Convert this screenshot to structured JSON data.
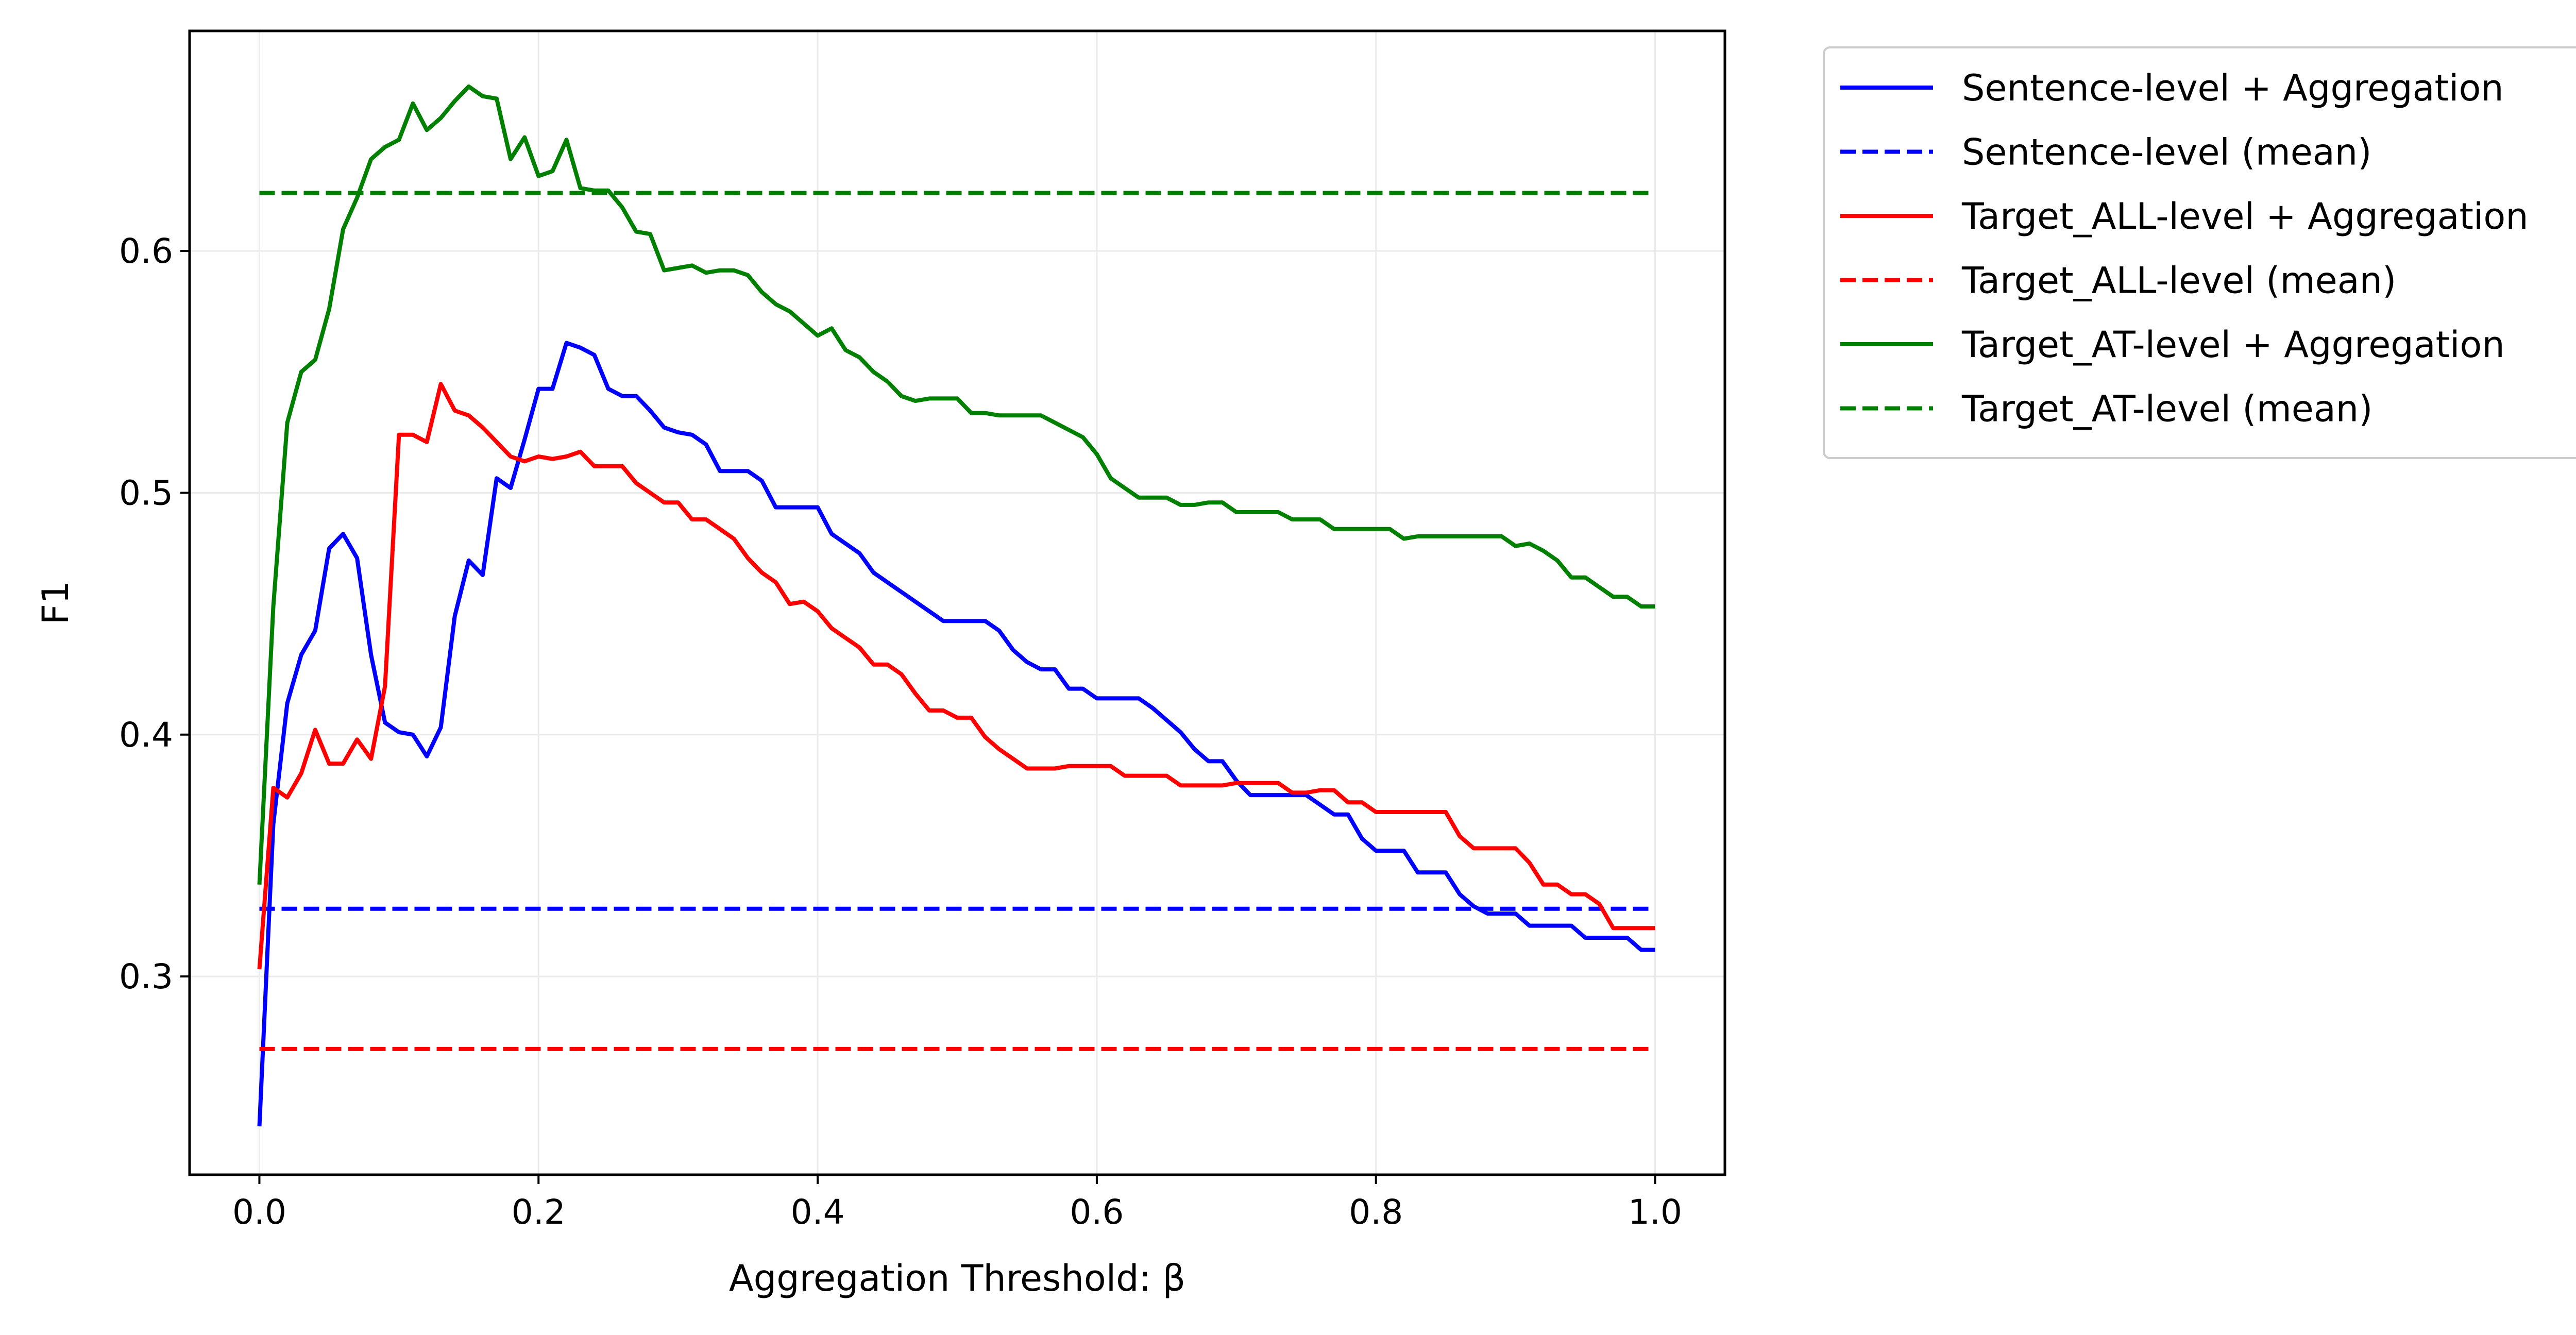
{
  "chart_data": {
    "type": "line",
    "title": "",
    "xlabel": "Aggregation Threshold: β",
    "ylabel": "F1",
    "xlim": [
      -0.05,
      1.05
    ],
    "ylim": [
      0.218,
      0.691
    ],
    "xticks": [
      0.0,
      0.2,
      0.4,
      0.6,
      0.8,
      1.0
    ],
    "xtick_labels": [
      "0.0",
      "0.2",
      "0.4",
      "0.6",
      "0.8",
      "1.0"
    ],
    "yticks": [
      0.3,
      0.4,
      0.5,
      0.6
    ],
    "ytick_labels": [
      "0.3",
      "0.4",
      "0.5",
      "0.6"
    ],
    "grid": true,
    "legend_position": "outside-right-top",
    "series": [
      {
        "name": "Sentence-level + Aggregation",
        "color": "#0000ff",
        "style": "solid",
        "x": [
          0.0,
          0.01,
          0.02,
          0.03,
          0.04,
          0.05,
          0.06,
          0.07,
          0.08,
          0.09,
          0.1,
          0.11,
          0.12,
          0.13,
          0.14,
          0.15,
          0.16,
          0.17,
          0.18,
          0.19,
          0.2,
          0.21,
          0.22,
          0.23,
          0.24,
          0.25,
          0.26,
          0.27,
          0.28,
          0.29,
          0.3,
          0.31,
          0.32,
          0.33,
          0.34,
          0.35,
          0.36,
          0.37,
          0.38,
          0.39,
          0.4,
          0.41,
          0.42,
          0.43,
          0.44,
          0.45,
          0.46,
          0.47,
          0.48,
          0.49,
          0.5,
          0.51,
          0.52,
          0.53,
          0.54,
          0.55,
          0.56,
          0.57,
          0.58,
          0.59,
          0.6,
          0.61,
          0.62,
          0.63,
          0.64,
          0.65,
          0.66,
          0.67,
          0.68,
          0.69,
          0.7,
          0.71,
          0.72,
          0.73,
          0.74,
          0.75,
          0.76,
          0.77,
          0.78,
          0.79,
          0.8,
          0.81,
          0.82,
          0.83,
          0.84,
          0.85,
          0.86,
          0.87,
          0.88,
          0.89,
          0.9,
          0.91,
          0.92,
          0.93,
          0.94,
          0.95,
          0.96,
          0.97,
          0.98,
          0.99,
          1.0
        ],
        "y": [
          0.238,
          0.363,
          0.413,
          0.433,
          0.443,
          0.477,
          0.483,
          0.473,
          0.433,
          0.405,
          0.401,
          0.4,
          0.391,
          0.403,
          0.449,
          0.472,
          0.466,
          0.506,
          0.502,
          0.522,
          0.543,
          0.543,
          0.562,
          0.56,
          0.557,
          0.543,
          0.54,
          0.54,
          0.534,
          0.527,
          0.525,
          0.524,
          0.52,
          0.509,
          0.509,
          0.509,
          0.505,
          0.494,
          0.494,
          0.494,
          0.494,
          0.483,
          0.479,
          0.475,
          0.467,
          0.463,
          0.459,
          0.455,
          0.451,
          0.447,
          0.447,
          0.447,
          0.447,
          0.443,
          0.435,
          0.43,
          0.427,
          0.427,
          0.419,
          0.419,
          0.415,
          0.415,
          0.415,
          0.415,
          0.411,
          0.406,
          0.401,
          0.394,
          0.389,
          0.389,
          0.381,
          0.375,
          0.375,
          0.375,
          0.375,
          0.375,
          0.371,
          0.367,
          0.367,
          0.357,
          0.352,
          0.352,
          0.352,
          0.343,
          0.343,
          0.343,
          0.334,
          0.329,
          0.326,
          0.326,
          0.326,
          0.321,
          0.321,
          0.321,
          0.321,
          0.316,
          0.316,
          0.316,
          0.316,
          0.311,
          0.311
        ]
      },
      {
        "name": "Sentence-level (mean)",
        "color": "#0000ff",
        "style": "dashed",
        "x": [
          0.0,
          1.0
        ],
        "y": [
          0.328,
          0.328
        ]
      },
      {
        "name": "Target_ALL-level + Aggregation",
        "color": "#ff0000",
        "style": "solid",
        "x": [
          0.0,
          0.01,
          0.02,
          0.03,
          0.04,
          0.05,
          0.06,
          0.07,
          0.08,
          0.09,
          0.1,
          0.11,
          0.12,
          0.13,
          0.14,
          0.15,
          0.16,
          0.17,
          0.18,
          0.19,
          0.2,
          0.21,
          0.22,
          0.23,
          0.24,
          0.25,
          0.26,
          0.27,
          0.28,
          0.29,
          0.3,
          0.31,
          0.32,
          0.33,
          0.34,
          0.35,
          0.36,
          0.37,
          0.38,
          0.39,
          0.4,
          0.41,
          0.42,
          0.43,
          0.44,
          0.45,
          0.46,
          0.47,
          0.48,
          0.49,
          0.5,
          0.51,
          0.52,
          0.53,
          0.54,
          0.55,
          0.56,
          0.57,
          0.58,
          0.59,
          0.6,
          0.61,
          0.62,
          0.63,
          0.64,
          0.65,
          0.66,
          0.67,
          0.68,
          0.69,
          0.7,
          0.71,
          0.72,
          0.73,
          0.74,
          0.75,
          0.76,
          0.77,
          0.78,
          0.79,
          0.8,
          0.81,
          0.82,
          0.83,
          0.84,
          0.85,
          0.86,
          0.87,
          0.88,
          0.89,
          0.9,
          0.91,
          0.92,
          0.93,
          0.94,
          0.95,
          0.96,
          0.97,
          0.98,
          0.99,
          1.0
        ],
        "y": [
          0.303,
          0.378,
          0.374,
          0.384,
          0.402,
          0.388,
          0.388,
          0.398,
          0.39,
          0.42,
          0.524,
          0.524,
          0.521,
          0.545,
          0.534,
          0.532,
          0.527,
          0.521,
          0.515,
          0.513,
          0.515,
          0.514,
          0.515,
          0.517,
          0.511,
          0.511,
          0.511,
          0.504,
          0.5,
          0.496,
          0.496,
          0.489,
          0.489,
          0.485,
          0.481,
          0.473,
          0.467,
          0.463,
          0.454,
          0.455,
          0.451,
          0.444,
          0.44,
          0.436,
          0.429,
          0.429,
          0.425,
          0.417,
          0.41,
          0.41,
          0.407,
          0.407,
          0.399,
          0.394,
          0.39,
          0.386,
          0.386,
          0.386,
          0.387,
          0.387,
          0.387,
          0.387,
          0.383,
          0.383,
          0.383,
          0.383,
          0.379,
          0.379,
          0.379,
          0.379,
          0.38,
          0.38,
          0.38,
          0.38,
          0.376,
          0.376,
          0.377,
          0.377,
          0.372,
          0.372,
          0.368,
          0.368,
          0.368,
          0.368,
          0.368,
          0.368,
          0.358,
          0.353,
          0.353,
          0.353,
          0.353,
          0.347,
          0.338,
          0.338,
          0.334,
          0.334,
          0.33,
          0.32,
          0.32,
          0.32,
          0.32
        ]
      },
      {
        "name": "Target_ALL-level (mean)",
        "color": "#ff0000",
        "style": "dashed",
        "x": [
          0.0,
          1.0
        ],
        "y": [
          0.27,
          0.27
        ]
      },
      {
        "name": "Target_AT-level + Aggregation",
        "color": "#008000",
        "style": "solid",
        "x": [
          0.0,
          0.01,
          0.02,
          0.03,
          0.04,
          0.05,
          0.06,
          0.07,
          0.08,
          0.09,
          0.1,
          0.11,
          0.12,
          0.13,
          0.14,
          0.15,
          0.16,
          0.17,
          0.18,
          0.19,
          0.2,
          0.21,
          0.22,
          0.23,
          0.24,
          0.25,
          0.26,
          0.27,
          0.28,
          0.29,
          0.3,
          0.31,
          0.32,
          0.33,
          0.34,
          0.35,
          0.36,
          0.37,
          0.38,
          0.39,
          0.4,
          0.41,
          0.42,
          0.43,
          0.44,
          0.45,
          0.46,
          0.47,
          0.48,
          0.49,
          0.5,
          0.51,
          0.52,
          0.53,
          0.54,
          0.55,
          0.56,
          0.57,
          0.58,
          0.59,
          0.6,
          0.61,
          0.62,
          0.63,
          0.64,
          0.65,
          0.66,
          0.67,
          0.68,
          0.69,
          0.7,
          0.71,
          0.72,
          0.73,
          0.74,
          0.75,
          0.76,
          0.77,
          0.78,
          0.79,
          0.8,
          0.81,
          0.82,
          0.83,
          0.84,
          0.85,
          0.86,
          0.87,
          0.88,
          0.89,
          0.9,
          0.91,
          0.92,
          0.93,
          0.94,
          0.95,
          0.96,
          0.97,
          0.98,
          0.99,
          1.0
        ],
        "y": [
          0.338,
          0.453,
          0.529,
          0.55,
          0.555,
          0.576,
          0.609,
          0.622,
          0.638,
          0.643,
          0.646,
          0.661,
          0.65,
          0.655,
          0.662,
          0.668,
          0.664,
          0.663,
          0.638,
          0.647,
          0.631,
          0.633,
          0.646,
          0.626,
          0.625,
          0.625,
          0.618,
          0.608,
          0.607,
          0.592,
          0.593,
          0.594,
          0.591,
          0.592,
          0.592,
          0.59,
          0.583,
          0.578,
          0.575,
          0.57,
          0.565,
          0.568,
          0.559,
          0.556,
          0.55,
          0.546,
          0.54,
          0.538,
          0.539,
          0.539,
          0.539,
          0.533,
          0.533,
          0.532,
          0.532,
          0.532,
          0.532,
          0.529,
          0.526,
          0.523,
          0.516,
          0.506,
          0.502,
          0.498,
          0.498,
          0.498,
          0.495,
          0.495,
          0.496,
          0.496,
          0.492,
          0.492,
          0.492,
          0.492,
          0.489,
          0.489,
          0.489,
          0.485,
          0.485,
          0.485,
          0.485,
          0.485,
          0.481,
          0.482,
          0.482,
          0.482,
          0.482,
          0.482,
          0.482,
          0.482,
          0.478,
          0.479,
          0.476,
          0.472,
          0.465,
          0.465,
          0.461,
          0.457,
          0.457,
          0.453,
          0.453
        ]
      },
      {
        "name": "Target_AT-level (mean)",
        "color": "#008000",
        "style": "dashed",
        "x": [
          0.0,
          1.0
        ],
        "y": [
          0.624,
          0.624
        ]
      }
    ]
  }
}
